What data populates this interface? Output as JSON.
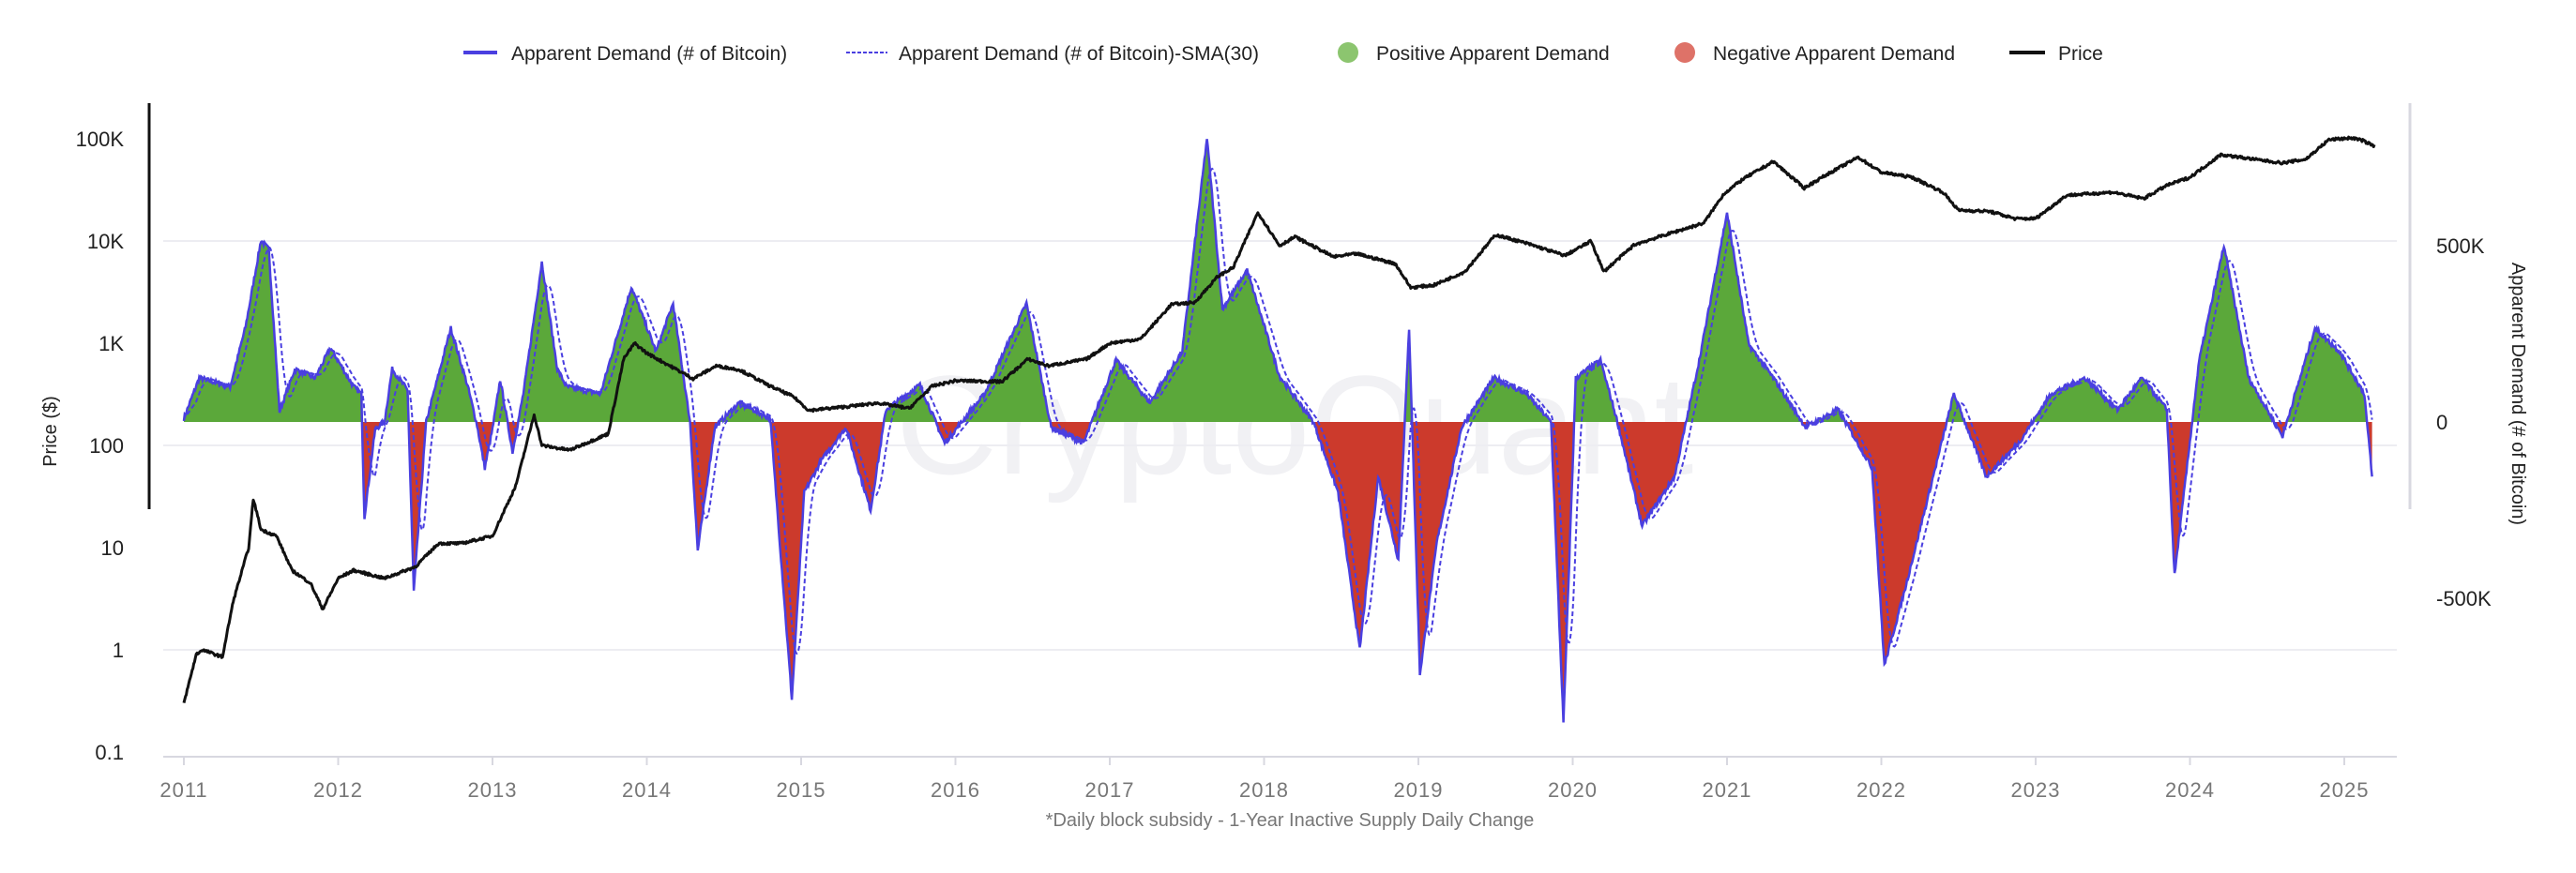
{
  "chart_data": {
    "type": "line",
    "caption": "*Daily block subsidy - 1-Year Inactive Supply Daily Change",
    "watermark": "CryptoQuant",
    "legend_placement": "top-center",
    "legend": [
      {
        "label": "Apparent Demand (# of Bitcoin)",
        "color": "#4a3fe0",
        "style": "solid-line"
      },
      {
        "label": "Apparent Demand (# of Bitcoin)-SMA(30)",
        "color": "#4a3fe0",
        "style": "dashed-line"
      },
      {
        "label": "Positive Apparent Demand",
        "color": "#8cc56f",
        "style": "dot"
      },
      {
        "label": "Negative Apparent Demand",
        "color": "#de7268",
        "style": "dot"
      },
      {
        "label": "Price",
        "color": "#111111",
        "style": "solid-line"
      }
    ],
    "colors": {
      "positive_fill": "#5ba83a",
      "negative_fill": "#cc3a2c",
      "demand_line": "#4a3fe0",
      "price_line": "#111111",
      "grid": "#ededf2"
    },
    "y_left": {
      "label": "Price ($)",
      "scale": "log",
      "range": [
        0.1,
        100000
      ],
      "ticks": [
        "0.1",
        "1",
        "10",
        "100",
        "1K",
        "10K",
        "100K"
      ]
    },
    "y_right": {
      "label": "Apparent Demand (# of Bitcoin)",
      "scale": "linear",
      "range_thousands": [
        -1000,
        1000
      ],
      "ticks": [
        "-500K",
        "0",
        "500K"
      ]
    },
    "x": {
      "range": [
        2011,
        2025.25
      ],
      "ticks": [
        "2011",
        "2012",
        "2013",
        "2014",
        "2015",
        "2016",
        "2017",
        "2018",
        "2019",
        "2020",
        "2021",
        "2022",
        "2023",
        "2024",
        "2025"
      ]
    },
    "grid": true,
    "series": [
      {
        "name": "Price",
        "unit": "USD",
        "points": [
          [
            2011.0,
            0.3
          ],
          [
            2011.08,
            0.9
          ],
          [
            2011.12,
            1.0
          ],
          [
            2011.25,
            0.85
          ],
          [
            2011.32,
            3
          ],
          [
            2011.42,
            10
          ],
          [
            2011.45,
            30
          ],
          [
            2011.5,
            15
          ],
          [
            2011.6,
            13
          ],
          [
            2011.7,
            6
          ],
          [
            2011.82,
            4.5
          ],
          [
            2011.9,
            2.5
          ],
          [
            2012.0,
            5
          ],
          [
            2012.1,
            6
          ],
          [
            2012.3,
            5
          ],
          [
            2012.5,
            6.5
          ],
          [
            2012.65,
            11
          ],
          [
            2012.8,
            11
          ],
          [
            2013.0,
            13
          ],
          [
            2013.15,
            40
          ],
          [
            2013.27,
            200
          ],
          [
            2013.32,
            100
          ],
          [
            2013.5,
            90
          ],
          [
            2013.75,
            130
          ],
          [
            2013.85,
            700
          ],
          [
            2013.92,
            1000
          ],
          [
            2014.0,
            800
          ],
          [
            2014.15,
            600
          ],
          [
            2014.3,
            450
          ],
          [
            2014.45,
            600
          ],
          [
            2014.6,
            550
          ],
          [
            2014.8,
            380
          ],
          [
            2014.95,
            300
          ],
          [
            2015.05,
            220
          ],
          [
            2015.3,
            240
          ],
          [
            2015.5,
            260
          ],
          [
            2015.7,
            230
          ],
          [
            2015.85,
            380
          ],
          [
            2016.0,
            430
          ],
          [
            2016.3,
            420
          ],
          [
            2016.47,
            700
          ],
          [
            2016.6,
            600
          ],
          [
            2016.85,
            700
          ],
          [
            2017.0,
            1000
          ],
          [
            2017.2,
            1100
          ],
          [
            2017.4,
            2400
          ],
          [
            2017.55,
            2500
          ],
          [
            2017.7,
            4500
          ],
          [
            2017.8,
            5500
          ],
          [
            2017.96,
            19000
          ],
          [
            2018.1,
            9000
          ],
          [
            2018.2,
            11000
          ],
          [
            2018.45,
            7000
          ],
          [
            2018.6,
            7500
          ],
          [
            2018.85,
            6000
          ],
          [
            2018.95,
            3500
          ],
          [
            2019.1,
            3700
          ],
          [
            2019.3,
            5000
          ],
          [
            2019.5,
            11500
          ],
          [
            2019.7,
            9500
          ],
          [
            2019.95,
            7200
          ],
          [
            2020.12,
            10000
          ],
          [
            2020.2,
            5000
          ],
          [
            2020.4,
            9200
          ],
          [
            2020.6,
            11500
          ],
          [
            2020.85,
            15000
          ],
          [
            2020.98,
            29000
          ],
          [
            2021.1,
            40000
          ],
          [
            2021.3,
            60000
          ],
          [
            2021.5,
            33000
          ],
          [
            2021.65,
            45000
          ],
          [
            2021.85,
            66000
          ],
          [
            2022.0,
            47000
          ],
          [
            2022.2,
            42000
          ],
          [
            2022.4,
            30000
          ],
          [
            2022.5,
            20000
          ],
          [
            2022.7,
            19500
          ],
          [
            2022.87,
            16500
          ],
          [
            2023.0,
            16600
          ],
          [
            2023.2,
            28000
          ],
          [
            2023.5,
            30000
          ],
          [
            2023.7,
            26000
          ],
          [
            2023.85,
            35000
          ],
          [
            2024.0,
            42000
          ],
          [
            2024.2,
            70000
          ],
          [
            2024.45,
            62000
          ],
          [
            2024.6,
            58000
          ],
          [
            2024.75,
            63000
          ],
          [
            2024.9,
            98000
          ],
          [
            2025.05,
            102000
          ],
          [
            2025.12,
            96000
          ],
          [
            2025.2,
            84000
          ]
        ]
      },
      {
        "name": "Apparent Demand (# of Bitcoin)",
        "unit": "thousand BTC",
        "points": [
          [
            2011.0,
            10
          ],
          [
            2011.1,
            125
          ],
          [
            2011.3,
            100
          ],
          [
            2011.4,
            270
          ],
          [
            2011.5,
            515
          ],
          [
            2011.55,
            490
          ],
          [
            2011.62,
            30
          ],
          [
            2011.72,
            150
          ],
          [
            2011.85,
            125
          ],
          [
            2011.95,
            210
          ],
          [
            2012.1,
            100
          ],
          [
            2012.15,
            80
          ],
          [
            2012.17,
            -270
          ],
          [
            2012.24,
            -20
          ],
          [
            2012.3,
            0
          ],
          [
            2012.35,
            150
          ],
          [
            2012.45,
            90
          ],
          [
            2012.49,
            -480
          ],
          [
            2012.57,
            0
          ],
          [
            2012.73,
            266
          ],
          [
            2012.84,
            100
          ],
          [
            2012.9,
            -10
          ],
          [
            2012.95,
            -130
          ],
          [
            2013.0,
            -20
          ],
          [
            2013.05,
            120
          ],
          [
            2013.13,
            -85
          ],
          [
            2013.2,
            80
          ],
          [
            2013.32,
            453
          ],
          [
            2013.42,
            150
          ],
          [
            2013.48,
            100
          ],
          [
            2013.7,
            80
          ],
          [
            2013.9,
            383
          ],
          [
            2014.06,
            200
          ],
          [
            2014.17,
            336
          ],
          [
            2014.28,
            0
          ],
          [
            2014.33,
            -365
          ],
          [
            2014.44,
            -15
          ],
          [
            2014.6,
            55
          ],
          [
            2014.8,
            10
          ],
          [
            2014.94,
            -785
          ],
          [
            2015.02,
            -200
          ],
          [
            2015.13,
            -110
          ],
          [
            2015.29,
            -15
          ],
          [
            2015.45,
            -250
          ],
          [
            2015.55,
            35
          ],
          [
            2015.77,
            105
          ],
          [
            2015.93,
            -60
          ],
          [
            2016.19,
            80
          ],
          [
            2016.46,
            336
          ],
          [
            2016.62,
            -15
          ],
          [
            2016.83,
            -60
          ],
          [
            2017.04,
            175
          ],
          [
            2017.26,
            55
          ],
          [
            2017.47,
            200
          ],
          [
            2017.63,
            804
          ],
          [
            2017.73,
            320
          ],
          [
            2017.89,
            430
          ],
          [
            2018.1,
            130
          ],
          [
            2018.32,
            0
          ],
          [
            2018.48,
            -200
          ],
          [
            2018.62,
            -645
          ],
          [
            2018.74,
            -155
          ],
          [
            2018.87,
            -390
          ],
          [
            2018.94,
            266
          ],
          [
            2019.01,
            -715
          ],
          [
            2019.12,
            -340
          ],
          [
            2019.28,
            -15
          ],
          [
            2019.49,
            125
          ],
          [
            2019.7,
            80
          ],
          [
            2019.86,
            0
          ],
          [
            2019.94,
            -855
          ],
          [
            2020.02,
            125
          ],
          [
            2020.18,
            175
          ],
          [
            2020.29,
            0
          ],
          [
            2020.45,
            -295
          ],
          [
            2020.66,
            -155
          ],
          [
            2020.82,
            175
          ],
          [
            2021.0,
            593
          ],
          [
            2021.14,
            220
          ],
          [
            2021.3,
            125
          ],
          [
            2021.51,
            -15
          ],
          [
            2021.72,
            35
          ],
          [
            2021.94,
            -130
          ],
          [
            2022.02,
            -690
          ],
          [
            2022.15,
            -480
          ],
          [
            2022.31,
            -200
          ],
          [
            2022.47,
            80
          ],
          [
            2022.68,
            -155
          ],
          [
            2022.89,
            -60
          ],
          [
            2023.1,
            80
          ],
          [
            2023.32,
            125
          ],
          [
            2023.53,
            35
          ],
          [
            2023.69,
            125
          ],
          [
            2023.85,
            35
          ],
          [
            2023.9,
            -435
          ],
          [
            2024.06,
            175
          ],
          [
            2024.22,
            500
          ],
          [
            2024.38,
            125
          ],
          [
            2024.6,
            -40
          ],
          [
            2024.81,
            266
          ],
          [
            2024.97,
            200
          ],
          [
            2025.13,
            80
          ],
          [
            2025.18,
            -155
          ]
        ]
      },
      {
        "name": "Apparent Demand (# of Bitcoin)-SMA(30)",
        "unit": "thousand BTC",
        "derived_from": "Apparent Demand (# of Bitcoin)",
        "window_days": 30
      }
    ]
  }
}
